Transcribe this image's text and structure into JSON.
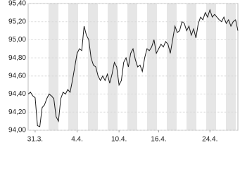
{
  "chart_data": {
    "type": "line",
    "x": [
      0,
      1,
      2,
      3,
      4,
      5,
      6,
      7,
      8,
      9,
      10,
      11,
      12,
      13,
      14,
      15,
      16,
      17,
      18,
      19,
      20,
      21,
      22,
      23,
      24,
      25,
      26,
      27,
      28,
      29,
      30,
      31,
      32,
      33,
      34,
      35,
      36,
      37,
      38,
      39,
      40,
      41,
      42,
      43,
      44,
      45,
      46,
      47,
      48,
      49,
      50,
      51,
      52,
      53,
      54,
      55,
      56,
      57,
      58,
      59,
      60,
      61,
      62,
      63,
      64,
      65,
      66,
      67,
      68,
      69,
      70,
      71,
      72,
      73,
      74,
      75,
      76,
      77,
      78,
      79,
      80,
      81,
      82,
      83,
      84,
      85,
      86,
      87,
      88,
      89,
      90
    ],
    "series": [
      {
        "color": "#1a1a1a",
        "values": [
          94.4,
          94.42,
          94.38,
          94.36,
          94.05,
          94.04,
          94.25,
          94.28,
          94.35,
          94.4,
          94.38,
          94.35,
          94.15,
          94.1,
          94.35,
          94.42,
          94.4,
          94.45,
          94.42,
          94.55,
          94.7,
          94.85,
          94.9,
          94.88,
          95.15,
          95.05,
          95.0,
          94.8,
          94.72,
          94.7,
          94.6,
          94.55,
          94.6,
          94.55,
          94.62,
          94.52,
          94.62,
          94.75,
          94.7,
          94.5,
          94.55,
          94.75,
          94.8,
          94.7,
          94.85,
          94.9,
          94.78,
          94.7,
          94.72,
          94.65,
          94.8,
          94.9,
          94.88,
          94.92,
          95.0,
          94.85,
          94.9,
          94.95,
          94.92,
          94.98,
          94.95,
          94.85,
          95.0,
          95.15,
          95.08,
          95.1,
          95.2,
          95.18,
          95.1,
          95.15,
          95.05,
          95.12,
          95.02,
          95.18,
          95.25,
          95.22,
          95.3,
          95.25,
          95.33,
          95.25,
          95.28,
          95.25,
          95.22,
          95.2,
          95.25,
          95.18,
          95.22,
          95.15,
          95.2,
          95.22,
          95.1
        ]
      }
    ],
    "xlim": [
      0,
      90
    ],
    "xticks": [
      {
        "value": 3,
        "label": "31.3."
      },
      {
        "value": 21,
        "label": "4.4."
      },
      {
        "value": 39,
        "label": "10.4."
      },
      {
        "value": 56,
        "label": "16.4."
      },
      {
        "value": 78,
        "label": "24.4."
      }
    ],
    "ylim": [
      94.0,
      95.4
    ],
    "yticks": [
      {
        "value": 94.0,
        "label": "94,00"
      },
      {
        "value": 94.2,
        "label": "94,20"
      },
      {
        "value": 94.4,
        "label": "94,40"
      },
      {
        "value": 94.6,
        "label": "94,60"
      },
      {
        "value": 94.8,
        "label": "94,80"
      },
      {
        "value": 95.0,
        "label": "95,00"
      },
      {
        "value": 95.2,
        "label": "95,20"
      },
      {
        "value": 95.4,
        "label": "95,40"
      }
    ],
    "grid": true
  }
}
